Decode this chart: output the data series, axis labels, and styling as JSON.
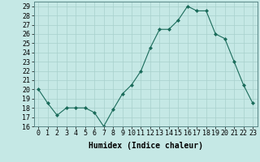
{
  "x": [
    0,
    1,
    2,
    3,
    4,
    5,
    6,
    7,
    8,
    9,
    10,
    11,
    12,
    13,
    14,
    15,
    16,
    17,
    18,
    19,
    20,
    21,
    22,
    23
  ],
  "y": [
    20,
    18.5,
    17.2,
    18,
    18,
    18,
    17.5,
    16,
    17.8,
    19.5,
    20.5,
    22,
    24.5,
    26.5,
    26.5,
    27.5,
    29,
    28.5,
    28.5,
    26,
    25.5,
    23,
    20.5,
    18.5
  ],
  "line_color": "#1a6b5a",
  "marker": "D",
  "marker_size": 2.0,
  "line_width": 0.8,
  "bg_color": "#c5e8e5",
  "grid_color": "#a8d0cc",
  "xlabel": "Humidex (Indice chaleur)",
  "xlim_min": -0.5,
  "xlim_max": 23.5,
  "ylim_min": 16,
  "ylim_max": 29.5,
  "yticks": [
    16,
    17,
    18,
    19,
    20,
    21,
    22,
    23,
    24,
    25,
    26,
    27,
    28,
    29
  ],
  "xticks": [
    0,
    1,
    2,
    3,
    4,
    5,
    6,
    7,
    8,
    9,
    10,
    11,
    12,
    13,
    14,
    15,
    16,
    17,
    18,
    19,
    20,
    21,
    22,
    23
  ],
  "xlabel_fontsize": 7,
  "tick_fontsize": 6
}
